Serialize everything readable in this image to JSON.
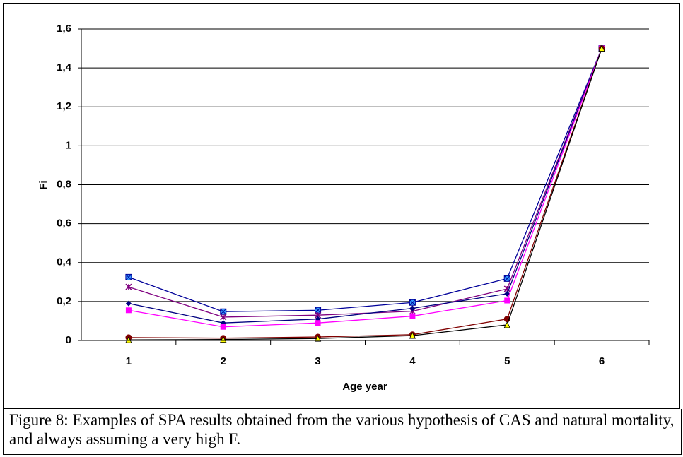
{
  "chart_data": {
    "type": "line",
    "x_label": "Age year",
    "y_label": "Fi",
    "categories": [
      "1",
      "2",
      "3",
      "4",
      "5",
      "6"
    ],
    "ylim": [
      0,
      1.6
    ],
    "yticks": [
      0,
      {
        "value": 0.2,
        "label": "0,2"
      },
      {
        "value": 0.4,
        "label": "0,4"
      },
      {
        "value": 0.6,
        "label": "0,6"
      },
      {
        "value": 0.8,
        "label": "0,8"
      },
      1,
      {
        "value": 1.2,
        "label": "1,2"
      },
      {
        "value": 1.4,
        "label": "1,4"
      },
      {
        "value": 1.6,
        "label": "1,6"
      }
    ],
    "grid": true,
    "series": [
      {
        "color": "#000099",
        "marker": "square-x",
        "marker_color": "#3399ff",
        "values": [
          0.325,
          0.148,
          0.155,
          0.195,
          0.318,
          1.5
        ]
      },
      {
        "color": "#800080",
        "marker": "x",
        "marker_color": "#800080",
        "values": [
          0.275,
          0.12,
          0.13,
          0.15,
          0.265,
          1.5
        ]
      },
      {
        "color": "#000080",
        "marker": "diamond",
        "marker_color": "#000080",
        "values": [
          0.19,
          0.09,
          0.11,
          0.165,
          0.24,
          1.5
        ]
      },
      {
        "color": "#ff00ff",
        "marker": "square",
        "marker_color": "#ff00ff",
        "values": [
          0.155,
          0.07,
          0.09,
          0.125,
          0.205,
          1.5
        ]
      },
      {
        "color": "#800000",
        "marker": "circle",
        "marker_color": "#800000",
        "values": [
          0.015,
          0.012,
          0.018,
          0.03,
          0.11,
          1.5
        ]
      },
      {
        "color": "#000000",
        "marker": "triangle",
        "marker_color": "#ffff00",
        "values": [
          0.003,
          0.005,
          0.01,
          0.025,
          0.08,
          1.5
        ]
      }
    ]
  },
  "caption": "Figure 8:  Examples of SPA results obtained from the various hypothesis of CAS and natural mortality, and always assuming a very high F."
}
